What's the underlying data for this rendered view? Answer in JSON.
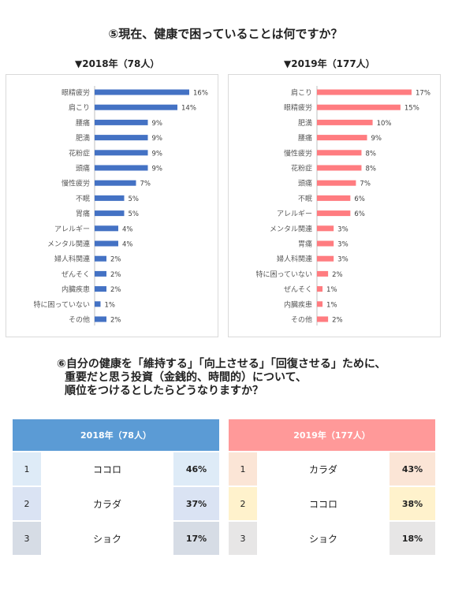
{
  "q5_title": "⑤現在、健康で困っていることは何ですか？",
  "q6_title_line1": "⑥自分の健康を「維持する」「向上させる」「回復させる」ために、",
  "q6_title_line2": "重要だと思う投資（金銭的、時間的）について、",
  "q6_title_line3": "順位をつけるとしたらどうなりますか？",
  "chart_data": [
    {
      "type": "bar",
      "orientation": "horizontal",
      "title": "▼2018年（78人）",
      "color": "#4472c4",
      "categories": [
        "眼精疲労",
        "肩こり",
        "腰痛",
        "肥満",
        "花粉症",
        "頭痛",
        "慢性疲労",
        "不眠",
        "胃痛",
        "アレルギー",
        "メンタル関連",
        "婦人科関連",
        "ぜんそく",
        "内臓疾患",
        "特に困っていない",
        "その他"
      ],
      "values": [
        16,
        14,
        9,
        9,
        9,
        9,
        7,
        5,
        5,
        4,
        4,
        2,
        2,
        2,
        1,
        2
      ],
      "value_labels": [
        "16%",
        "14%",
        "9%",
        "9%",
        "9%",
        "9%",
        "7%",
        "5%",
        "5%",
        "4%",
        "4%",
        "2%",
        "2%",
        "2%",
        "1%",
        "2%"
      ],
      "unit": "%"
    },
    {
      "type": "bar",
      "orientation": "horizontal",
      "title": "▼2019年（177人）",
      "color": "#ff7c80",
      "categories": [
        "肩こり",
        "眼精疲労",
        "肥満",
        "腰痛",
        "慢性疲労",
        "花粉症",
        "頭痛",
        "不眠",
        "アレルギー",
        "メンタル関連",
        "胃痛",
        "婦人科関連",
        "特に困っていない",
        "ぜんそく",
        "内臓疾患",
        "その他"
      ],
      "values": [
        17,
        15,
        10,
        9,
        8,
        8,
        7,
        6,
        6,
        3,
        3,
        3,
        2,
        1,
        1,
        2
      ],
      "value_labels": [
        "17%",
        "15%",
        "10%",
        "9%",
        "8%",
        "8%",
        "7%",
        "6%",
        "6%",
        "3%",
        "3%",
        "3%",
        "2%",
        "1%",
        "1%",
        "2%"
      ],
      "unit": "%"
    }
  ],
  "table_2018": {
    "header": "2018年（78人）",
    "header_color": "#5b9bd5",
    "rows": [
      {
        "rank": "1",
        "name": "ココロ",
        "pct": "46%"
      },
      {
        "rank": "2",
        "name": "カラダ",
        "pct": "37%"
      },
      {
        "rank": "3",
        "name": "ショク",
        "pct": "17%"
      }
    ],
    "row_colors": [
      "#deebf7",
      "#dae3f3",
      "#d6dce5"
    ]
  },
  "table_2019": {
    "header": "2019年（177人）",
    "header_color": "#ff9999",
    "rows": [
      {
        "rank": "1",
        "name": "カラダ",
        "pct": "43%"
      },
      {
        "rank": "2",
        "name": "ココロ",
        "pct": "38%"
      },
      {
        "rank": "3",
        "name": "ショク",
        "pct": "18%"
      }
    ],
    "row_colors": [
      "#fbe5d6",
      "#fff2cc",
      "#e7e6e6"
    ]
  }
}
